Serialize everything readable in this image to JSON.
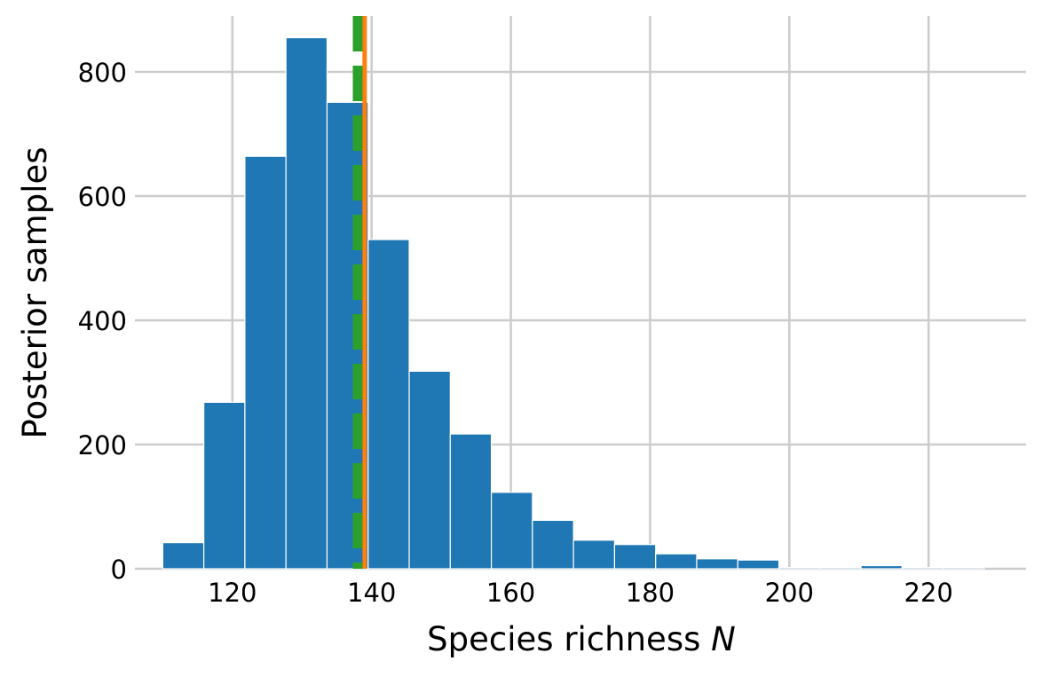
{
  "chart_data": {
    "type": "bar",
    "subtype": "histogram",
    "xlabel": "Species richness",
    "xlabel_var": "N",
    "ylabel": "Posterior samples",
    "xlim": [
      106,
      234
    ],
    "ylim": [
      0,
      890
    ],
    "grid": true,
    "xticks": [
      120,
      140,
      160,
      180,
      200,
      220
    ],
    "yticks": [
      0,
      200,
      400,
      600,
      800
    ],
    "bin_edges": [
      110,
      115.9,
      121.8,
      127.7,
      133.6,
      139.5,
      145.4,
      151.3,
      157.2,
      163.1,
      169.0,
      174.9,
      180.8,
      186.7,
      192.6,
      198.5,
      204.4,
      210.3,
      216.2,
      222.1,
      228.0
    ],
    "counts": [
      42,
      268,
      664,
      855,
      751,
      530,
      318,
      217,
      123,
      78,
      46,
      39,
      24,
      16,
      14,
      2,
      2,
      5,
      2,
      2
    ],
    "bar_color": "#1f77b4",
    "vlines": [
      {
        "x": 139.0,
        "color": "#ff7f0e",
        "style": "solid"
      },
      {
        "x": 138.0,
        "color": "#2ca02c",
        "style": "dashed"
      }
    ]
  }
}
